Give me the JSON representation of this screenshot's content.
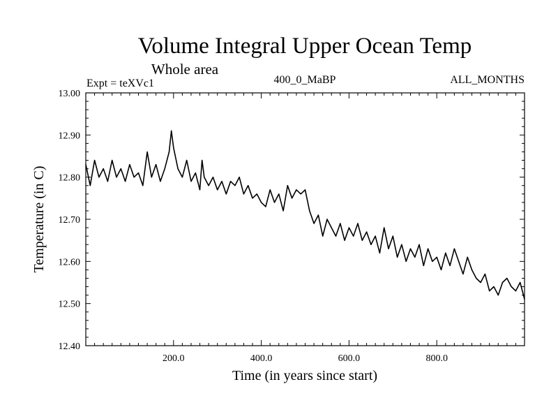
{
  "chart_data": {
    "type": "line",
    "title": "Volume Integral Upper Ocean Temp",
    "subtitle": "Whole area",
    "experiment_label": "Expt = teXVc1",
    "center_label": "400_0_MaBP",
    "right_label": "ALL_MONTHS",
    "xlabel": "Time (in years since start)",
    "ylabel": "Temperature (in C)",
    "xlim": [
      0,
      1000
    ],
    "ylim": [
      12.4,
      13.0
    ],
    "xticks": [
      200,
      400,
      600,
      800
    ],
    "xtick_labels": [
      "200.0",
      "400.0",
      "600.0",
      "800.0"
    ],
    "yticks": [
      12.4,
      12.5,
      12.6,
      12.7,
      12.8,
      12.9,
      13.0
    ],
    "ytick_labels": [
      "12.40",
      "12.50",
      "12.60",
      "12.70",
      "12.80",
      "12.90",
      "13.00"
    ],
    "grid": false,
    "series": [
      {
        "name": "Volume Integral Upper Ocean Temp",
        "x": [
          0,
          10,
          20,
          30,
          40,
          50,
          60,
          70,
          80,
          90,
          100,
          110,
          120,
          130,
          140,
          150,
          160,
          170,
          180,
          190,
          195,
          200,
          210,
          220,
          230,
          240,
          250,
          260,
          265,
          270,
          280,
          290,
          300,
          310,
          320,
          330,
          340,
          350,
          360,
          370,
          380,
          390,
          400,
          410,
          420,
          430,
          440,
          450,
          460,
          470,
          480,
          490,
          500,
          510,
          520,
          530,
          540,
          550,
          560,
          570,
          580,
          590,
          600,
          610,
          620,
          630,
          640,
          650,
          660,
          670,
          680,
          690,
          700,
          710,
          720,
          730,
          740,
          750,
          760,
          770,
          780,
          790,
          800,
          810,
          820,
          830,
          840,
          850,
          860,
          870,
          880,
          890,
          900,
          910,
          920,
          930,
          940,
          950,
          960,
          970,
          980,
          990,
          1000
        ],
        "values": [
          12.83,
          12.78,
          12.84,
          12.8,
          12.82,
          12.79,
          12.84,
          12.8,
          12.82,
          12.79,
          12.83,
          12.8,
          12.81,
          12.78,
          12.86,
          12.8,
          12.83,
          12.79,
          12.82,
          12.86,
          12.91,
          12.87,
          12.82,
          12.8,
          12.84,
          12.79,
          12.81,
          12.77,
          12.84,
          12.8,
          12.78,
          12.8,
          12.77,
          12.79,
          12.76,
          12.79,
          12.78,
          12.8,
          12.76,
          12.78,
          12.75,
          12.76,
          12.74,
          12.73,
          12.77,
          12.74,
          12.76,
          12.72,
          12.78,
          12.75,
          12.77,
          12.76,
          12.77,
          12.72,
          12.69,
          12.71,
          12.66,
          12.7,
          12.68,
          12.66,
          12.69,
          12.65,
          12.68,
          12.66,
          12.69,
          12.65,
          12.67,
          12.64,
          12.66,
          12.62,
          12.68,
          12.63,
          12.66,
          12.61,
          12.64,
          12.6,
          12.63,
          12.61,
          12.64,
          12.59,
          12.63,
          12.6,
          12.61,
          12.58,
          12.62,
          12.59,
          12.63,
          12.6,
          12.57,
          12.61,
          12.58,
          12.56,
          12.55,
          12.57,
          12.53,
          12.54,
          12.52,
          12.55,
          12.56,
          12.54,
          12.53,
          12.55,
          12.51
        ]
      }
    ]
  }
}
